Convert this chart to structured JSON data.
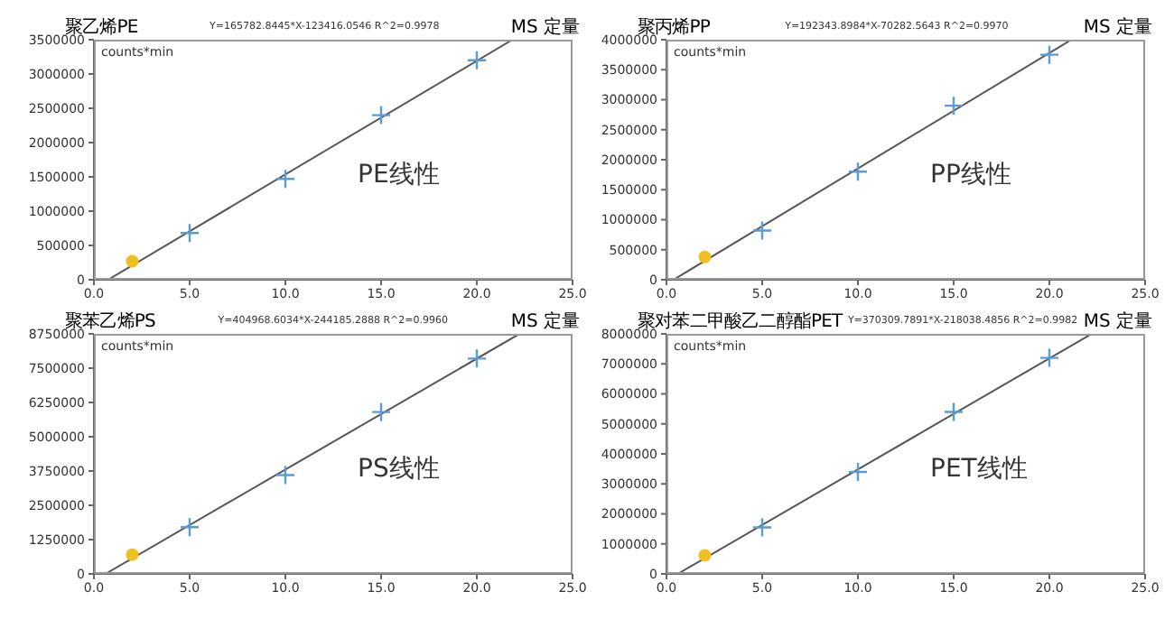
{
  "chart_data": [
    {
      "type": "scatter",
      "title": "聚乙烯PE",
      "subtitle": "Y=165782.8445*X-123416.0546   R^2=0.9978",
      "ylabel": "counts*min",
      "annotations": [
        "MS 定量",
        "PE线性"
      ],
      "xlim": [
        0,
        25
      ],
      "xticks": [
        {
          "value": 0,
          "label": "0.0"
        },
        {
          "value": 5,
          "label": "5.0"
        },
        {
          "value": 10,
          "label": "10.0"
        },
        {
          "value": 15,
          "label": "15.0"
        },
        {
          "value": 20,
          "label": "20.0"
        },
        {
          "value": 25,
          "label": "25.0"
        }
      ],
      "ylim": [
        0,
        3500000
      ],
      "yticks": [
        0,
        500000,
        1000000,
        1500000,
        2000000,
        2500000,
        3000000,
        3500000
      ],
      "series": [
        {
          "type": "line",
          "color": "#555555",
          "x": [
            0.74,
            21.8
          ],
          "values": [
            0,
            3490000
          ],
          "marker": "none"
        },
        {
          "type": "scatter",
          "color": "#5b9bd5",
          "x": [
            5,
            10,
            15,
            20
          ],
          "values": [
            680000,
            1470000,
            2400000,
            3200000
          ],
          "marker": "cross"
        },
        {
          "type": "scatter",
          "color": "#f0c020",
          "x": [
            2
          ],
          "values": [
            270000
          ],
          "marker": "circle"
        }
      ]
    },
    {
      "type": "scatter",
      "title": "聚丙烯PP",
      "subtitle": "Y=192343.8984*X-70282.5643   R^2=0.9970",
      "ylabel": "counts*min",
      "annotations": [
        "MS 定量",
        "PP线性"
      ],
      "xlim": [
        0,
        25
      ],
      "xticks": [
        {
          "value": 0,
          "label": "0.0"
        },
        {
          "value": 5,
          "label": "5.0"
        },
        {
          "value": 10,
          "label": "10.0"
        },
        {
          "value": 15,
          "label": "15.0"
        },
        {
          "value": 20,
          "label": "20.0"
        },
        {
          "value": 25,
          "label": "25.0"
        }
      ],
      "ylim": [
        0,
        4000000
      ],
      "yticks": [
        0,
        500000,
        1000000,
        1500000,
        2000000,
        2500000,
        3000000,
        3500000,
        4000000
      ],
      "series": [
        {
          "type": "line",
          "color": "#555555",
          "x": [
            0.37,
            21.1
          ],
          "values": [
            0,
            3990000
          ],
          "marker": "none"
        },
        {
          "type": "scatter",
          "color": "#5b9bd5",
          "x": [
            5,
            10,
            15,
            20
          ],
          "values": [
            820000,
            1800000,
            2900000,
            3750000
          ],
          "marker": "cross"
        },
        {
          "type": "scatter",
          "color": "#f0c020",
          "x": [
            2
          ],
          "values": [
            380000
          ],
          "marker": "circle"
        }
      ]
    },
    {
      "type": "scatter",
      "title": "聚苯乙烯PS",
      "subtitle": "Y=404968.6034*X-244185.2888   R^2=0.9960",
      "ylabel": "counts*min",
      "annotations": [
        "MS 定量",
        "PS线性"
      ],
      "xlim": [
        0,
        25
      ],
      "xticks": [
        {
          "value": 0,
          "label": "0.0"
        },
        {
          "value": 5,
          "label": "5.0"
        },
        {
          "value": 10,
          "label": "10.0"
        },
        {
          "value": 15,
          "label": "15.0"
        },
        {
          "value": 20,
          "label": "20.0"
        },
        {
          "value": 25,
          "label": "25.0"
        }
      ],
      "ylim": [
        0,
        8750000
      ],
      "yticks": [
        0,
        1250000,
        2500000,
        3750000,
        5000000,
        6250000,
        7500000,
        8750000
      ],
      "series": [
        {
          "type": "line",
          "color": "#555555",
          "x": [
            0.6,
            22.2
          ],
          "values": [
            0,
            8740000
          ],
          "marker": "none"
        },
        {
          "type": "scatter",
          "color": "#5b9bd5",
          "x": [
            5,
            10,
            15,
            20
          ],
          "values": [
            1700000,
            3600000,
            5900000,
            7850000
          ],
          "marker": "cross"
        },
        {
          "type": "scatter",
          "color": "#f0c020",
          "x": [
            2
          ],
          "values": [
            700000
          ],
          "marker": "circle"
        }
      ]
    },
    {
      "type": "scatter",
      "title": "聚对苯二甲酸乙二醇酯PET",
      "subtitle": "Y=370309.7891*X-218038.4856   R^2=0.9982",
      "ylabel": "counts*min",
      "annotations": [
        "MS 定量",
        "PET线性"
      ],
      "xlim": [
        0,
        25
      ],
      "xticks": [
        {
          "value": 0,
          "label": "0.0"
        },
        {
          "value": 5,
          "label": "5.0"
        },
        {
          "value": 10,
          "label": "10.0"
        },
        {
          "value": 15,
          "label": "15.0"
        },
        {
          "value": 20,
          "label": "20.0"
        },
        {
          "value": 25,
          "label": "25.0"
        }
      ],
      "ylim": [
        0,
        8000000
      ],
      "yticks": [
        0,
        1000000,
        2000000,
        3000000,
        4000000,
        5000000,
        6000000,
        7000000,
        8000000
      ],
      "series": [
        {
          "type": "line",
          "color": "#555555",
          "x": [
            0.59,
            22.1
          ],
          "values": [
            0,
            7960000
          ],
          "marker": "none"
        },
        {
          "type": "scatter",
          "color": "#5b9bd5",
          "x": [
            5,
            10,
            15,
            20
          ],
          "values": [
            1550000,
            3400000,
            5400000,
            7200000
          ],
          "marker": "cross"
        },
        {
          "type": "scatter",
          "color": "#f0c020",
          "x": [
            2
          ],
          "values": [
            620000
          ],
          "marker": "circle"
        }
      ]
    }
  ]
}
